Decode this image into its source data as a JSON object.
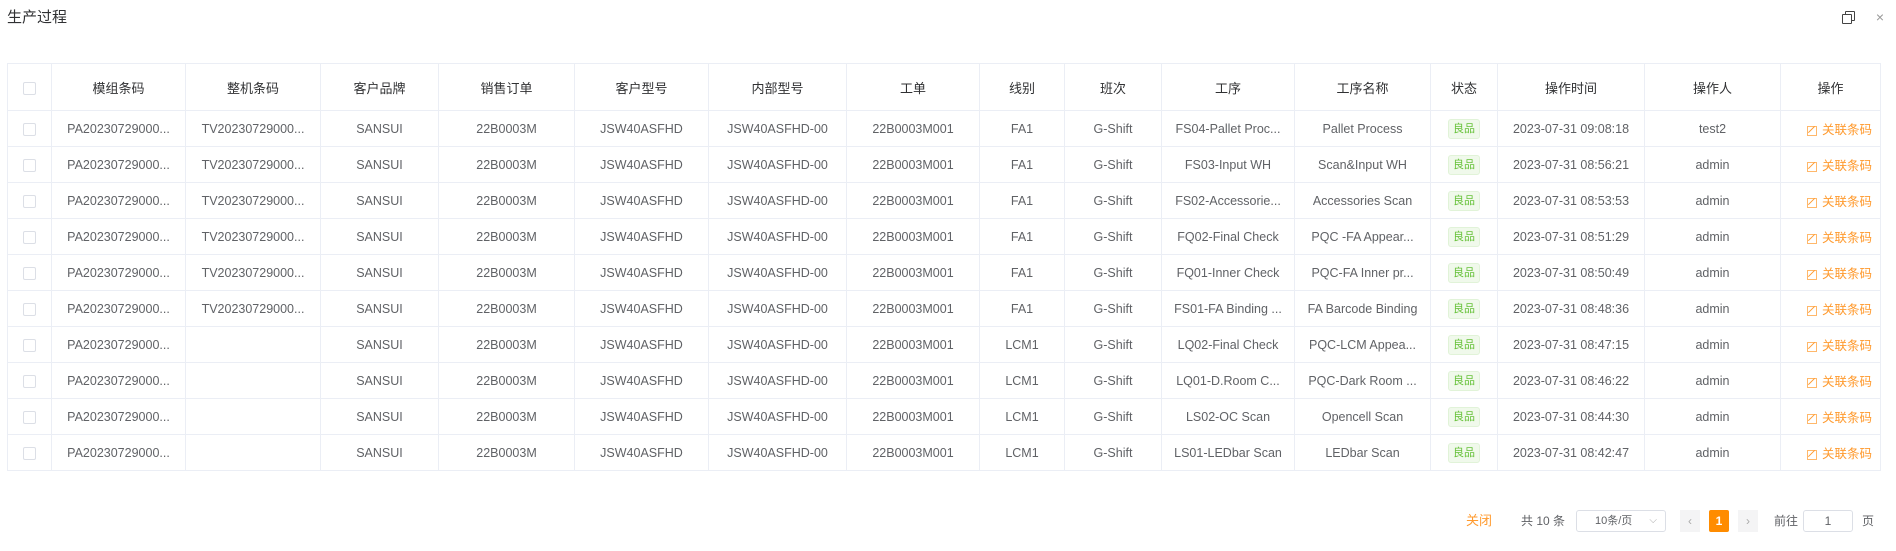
{
  "header": {
    "title": "生产过程",
    "copy_icon": "copy-icon",
    "close_icon": "close-icon",
    "close_glyph": "×"
  },
  "table": {
    "columns": [
      "模组条码",
      "整机条码",
      "客户品牌",
      "销售订单",
      "客户型号",
      "内部型号",
      "工单",
      "线别",
      "班次",
      "工序",
      "工序名称",
      "状态",
      "操作时间",
      "操作人",
      "操作"
    ],
    "action_label": "关联条码",
    "status_color": "#67c23a",
    "accent_color": "#ff9a2e",
    "rows": [
      [
        "PA20230729000...",
        "TV20230729000...",
        "SANSUI",
        "22B0003M",
        "JSW40ASFHD",
        "JSW40ASFHD-00",
        "22B0003M001",
        "FA1",
        "G-Shift",
        "FS04-Pallet Proc...",
        "Pallet Process",
        "良品",
        "2023-07-31 09:08:18",
        "test2"
      ],
      [
        "PA20230729000...",
        "TV20230729000...",
        "SANSUI",
        "22B0003M",
        "JSW40ASFHD",
        "JSW40ASFHD-00",
        "22B0003M001",
        "FA1",
        "G-Shift",
        "FS03-Input WH",
        "Scan&Input WH",
        "良品",
        "2023-07-31 08:56:21",
        "admin"
      ],
      [
        "PA20230729000...",
        "TV20230729000...",
        "SANSUI",
        "22B0003M",
        "JSW40ASFHD",
        "JSW40ASFHD-00",
        "22B0003M001",
        "FA1",
        "G-Shift",
        "FS02-Accessorie...",
        "Accessories Scan",
        "良品",
        "2023-07-31 08:53:53",
        "admin"
      ],
      [
        "PA20230729000...",
        "TV20230729000...",
        "SANSUI",
        "22B0003M",
        "JSW40ASFHD",
        "JSW40ASFHD-00",
        "22B0003M001",
        "FA1",
        "G-Shift",
        "FQ02-Final Check",
        "PQC -FA Appear...",
        "良品",
        "2023-07-31 08:51:29",
        "admin"
      ],
      [
        "PA20230729000...",
        "TV20230729000...",
        "SANSUI",
        "22B0003M",
        "JSW40ASFHD",
        "JSW40ASFHD-00",
        "22B0003M001",
        "FA1",
        "G-Shift",
        "FQ01-Inner Check",
        "PQC-FA Inner pr...",
        "良品",
        "2023-07-31 08:50:49",
        "admin"
      ],
      [
        "PA20230729000...",
        "TV20230729000...",
        "SANSUI",
        "22B0003M",
        "JSW40ASFHD",
        "JSW40ASFHD-00",
        "22B0003M001",
        "FA1",
        "G-Shift",
        "FS01-FA Binding ...",
        "FA Barcode Binding",
        "良品",
        "2023-07-31 08:48:36",
        "admin"
      ],
      [
        "PA20230729000...",
        "",
        "SANSUI",
        "22B0003M",
        "JSW40ASFHD",
        "JSW40ASFHD-00",
        "22B0003M001",
        "LCM1",
        "G-Shift",
        "LQ02-Final Check",
        "PQC-LCM Appea...",
        "良品",
        "2023-07-31 08:47:15",
        "admin"
      ],
      [
        "PA20230729000...",
        "",
        "SANSUI",
        "22B0003M",
        "JSW40ASFHD",
        "JSW40ASFHD-00",
        "22B0003M001",
        "LCM1",
        "G-Shift",
        "LQ01-D.Room C...",
        "PQC-Dark Room ...",
        "良品",
        "2023-07-31 08:46:22",
        "admin"
      ],
      [
        "PA20230729000...",
        "",
        "SANSUI",
        "22B0003M",
        "JSW40ASFHD",
        "JSW40ASFHD-00",
        "22B0003M001",
        "LCM1",
        "G-Shift",
        "LS02-OC Scan",
        "Opencell Scan",
        "良品",
        "2023-07-31 08:44:30",
        "admin"
      ],
      [
        "PA20230729000...",
        "",
        "SANSUI",
        "22B0003M",
        "JSW40ASFHD",
        "JSW40ASFHD-00",
        "22B0003M001",
        "LCM1",
        "G-Shift",
        "LS01-LEDbar Scan",
        "LEDbar Scan",
        "良品",
        "2023-07-31 08:42:47",
        "admin"
      ]
    ]
  },
  "footer": {
    "close_label": "关闭",
    "total_label": "共 10 条",
    "page_size": "10条/页",
    "current_page": "1",
    "goto_label": "前往",
    "goto_value": "1",
    "page_unit": "页",
    "prev_glyph": "‹",
    "next_glyph": "›",
    "dropdown_glyph": "⌵"
  }
}
